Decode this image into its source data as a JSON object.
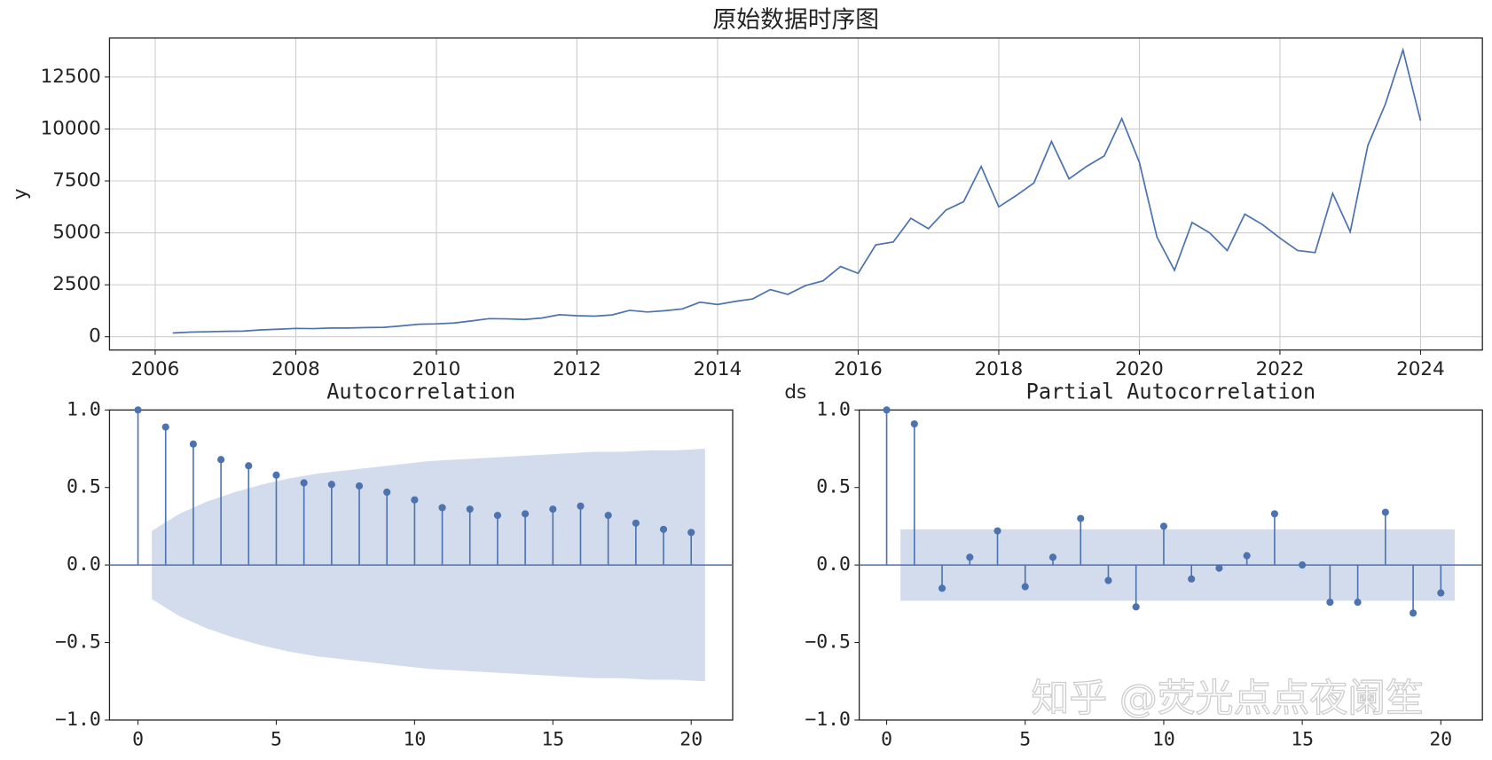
{
  "chart_data": [
    {
      "type": "line",
      "title": "原始数据时序图",
      "xlabel": "ds",
      "ylabel": "y",
      "color": "#4c72b0",
      "grid": true,
      "x": [
        2006.25,
        2006.5,
        2006.75,
        2007,
        2007.25,
        2007.5,
        2007.75,
        2008,
        2008.25,
        2008.5,
        2008.75,
        2009,
        2009.25,
        2009.5,
        2009.75,
        2010,
        2010.25,
        2010.5,
        2010.75,
        2011,
        2011.25,
        2011.5,
        2011.75,
        2012,
        2012.25,
        2012.5,
        2012.75,
        2013,
        2013.25,
        2013.5,
        2013.75,
        2014,
        2014.25,
        2014.5,
        2014.75,
        2015,
        2015.25,
        2015.5,
        2015.75,
        2016,
        2016.25,
        2016.5,
        2016.75,
        2017,
        2017.25,
        2017.5,
        2017.75,
        2018,
        2018.25,
        2018.5,
        2018.75,
        2019,
        2019.25,
        2019.5,
        2019.75,
        2020,
        2020.25,
        2020.5,
        2020.75,
        2021,
        2021.25,
        2021.5,
        2021.75,
        2022,
        2022.25,
        2022.5,
        2022.75,
        2023,
        2023.25,
        2023.5,
        2023.75,
        2024
      ],
      "values": [
        180,
        220,
        240,
        260,
        270,
        330,
        360,
        400,
        390,
        420,
        420,
        440,
        450,
        520,
        600,
        620,
        660,
        760,
        870,
        860,
        830,
        900,
        1060,
        1010,
        990,
        1050,
        1270,
        1190,
        1250,
        1340,
        1660,
        1550,
        1700,
        1820,
        2270,
        2040,
        2460,
        2690,
        3380,
        3050,
        4420,
        4560,
        5700,
        5200,
        6100,
        6500,
        8200,
        6250,
        6800,
        7400,
        9400,
        7600,
        8200,
        8700,
        10500,
        8400,
        4800,
        3200,
        5500,
        5000,
        4150,
        5900,
        5400,
        4750,
        4150,
        4050,
        6900,
        5050,
        9200,
        11200,
        13800,
        10400
      ],
      "xlim": [
        2005.35,
        2024.88
      ],
      "ylim": [
        -641,
        14377
      ],
      "xticks": [
        2006,
        2008,
        2010,
        2012,
        2014,
        2016,
        2018,
        2020,
        2022,
        2024
      ],
      "yticks": [
        0,
        2500,
        5000,
        7500,
        10000,
        12500
      ]
    },
    {
      "type": "stem",
      "title": "Autocorrelation",
      "color": "#4c72b0",
      "band_color": "#d2dcec",
      "x": [
        0,
        1,
        2,
        3,
        4,
        5,
        6,
        7,
        8,
        9,
        10,
        11,
        12,
        13,
        14,
        15,
        16,
        17,
        18,
        19,
        20
      ],
      "values": [
        1.0,
        0.89,
        0.78,
        0.68,
        0.64,
        0.58,
        0.53,
        0.52,
        0.51,
        0.47,
        0.42,
        0.37,
        0.36,
        0.32,
        0.33,
        0.36,
        0.38,
        0.32,
        0.27,
        0.23,
        0.21
      ],
      "band": {
        "x": [
          0.5,
          1.5,
          2.5,
          3.5,
          4.5,
          5.5,
          6.5,
          7.5,
          8.5,
          9.5,
          10.5,
          11.5,
          12.5,
          13.5,
          14.5,
          15.5,
          16.5,
          17.5,
          18.5,
          19.5,
          20.5
        ],
        "upper": [
          0.22,
          0.33,
          0.41,
          0.47,
          0.52,
          0.56,
          0.59,
          0.61,
          0.63,
          0.65,
          0.67,
          0.68,
          0.69,
          0.7,
          0.71,
          0.72,
          0.73,
          0.73,
          0.74,
          0.74,
          0.75
        ],
        "lower": [
          -0.22,
          -0.33,
          -0.41,
          -0.47,
          -0.52,
          -0.56,
          -0.59,
          -0.61,
          -0.63,
          -0.65,
          -0.67,
          -0.68,
          -0.69,
          -0.7,
          -0.71,
          -0.72,
          -0.73,
          -0.73,
          -0.74,
          -0.74,
          -0.75
        ]
      },
      "xlim": [
        -1.03,
        21.5
      ],
      "ylim": [
        -1,
        1
      ],
      "xticks": [
        0,
        5,
        10,
        15,
        20
      ],
      "yticks": [
        {
          "value": -1,
          "label": "−1.0"
        },
        {
          "value": -0.5,
          "label": "−0.5"
        },
        {
          "value": 0,
          "label": "0.0"
        },
        {
          "value": 0.5,
          "label": "0.5"
        },
        {
          "value": 1,
          "label": "1.0"
        }
      ]
    },
    {
      "type": "stem",
      "title": "Partial Autocorrelation",
      "color": "#4c72b0",
      "band_color": "#d2dcec",
      "x": [
        0,
        1,
        2,
        3,
        4,
        5,
        6,
        7,
        8,
        9,
        10,
        11,
        12,
        13,
        14,
        15,
        16,
        17,
        18,
        19,
        20
      ],
      "values": [
        1.0,
        0.91,
        -0.15,
        0.05,
        0.22,
        -0.14,
        0.05,
        0.3,
        -0.1,
        -0.27,
        0.25,
        -0.09,
        -0.02,
        0.06,
        0.33,
        0.0,
        -0.24,
        -0.24,
        0.34,
        -0.31,
        -0.18
      ],
      "band": {
        "x": [
          0.5,
          20.5
        ],
        "upper": [
          0.23,
          0.23
        ],
        "lower": [
          -0.23,
          -0.23
        ]
      },
      "xlim": [
        -0.99,
        21.5
      ],
      "ylim": [
        -1,
        1
      ],
      "xticks": [
        0,
        5,
        10,
        15,
        20
      ],
      "yticks": [
        {
          "value": -1,
          "label": "−1.0"
        },
        {
          "value": -0.5,
          "label": "−0.5"
        },
        {
          "value": 0,
          "label": "0.0"
        },
        {
          "value": 0.5,
          "label": "0.5"
        },
        {
          "value": 1,
          "label": "1.0"
        }
      ]
    }
  ],
  "watermark": "知乎 @荧光点点夜阑笙"
}
